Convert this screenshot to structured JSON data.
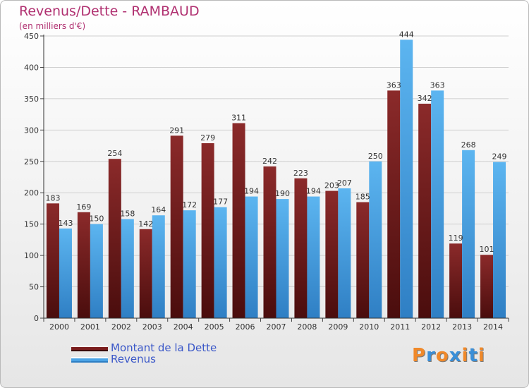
{
  "title": "Revenus/Dette - RAMBAUD",
  "subtitle": "(en milliers d'€)",
  "logo": {
    "text": "Proxiti",
    "letter_colors": [
      "#f0892a",
      "#3a8fd8",
      "#f0892a",
      "#3a8fd8",
      "#f0892a",
      "#3a8fd8",
      "#f0892a"
    ]
  },
  "chart_data": {
    "type": "bar",
    "categories": [
      "2000",
      "2001",
      "2002",
      "2003",
      "2004",
      "2005",
      "2006",
      "2007",
      "2008",
      "2009",
      "2010",
      "2011",
      "2012",
      "2013",
      "2014"
    ],
    "series": [
      {
        "name": "Montant de la Dette",
        "color": "#7a1d1d",
        "values": [
          183,
          169,
          254,
          142,
          291,
          279,
          311,
          242,
          223,
          203,
          185,
          363,
          342,
          119,
          101
        ]
      },
      {
        "name": "Revenus",
        "color": "#4aa3e6",
        "values": [
          143,
          150,
          158,
          164,
          172,
          177,
          194,
          190,
          194,
          207,
          250,
          444,
          363,
          268,
          249
        ]
      }
    ],
    "ylim": [
      0,
      450
    ],
    "yticks": [
      0,
      50,
      100,
      150,
      200,
      250,
      300,
      350,
      400,
      450
    ],
    "xlabel": "",
    "ylabel": "",
    "grid": true,
    "legend_position": "bottom-left"
  }
}
